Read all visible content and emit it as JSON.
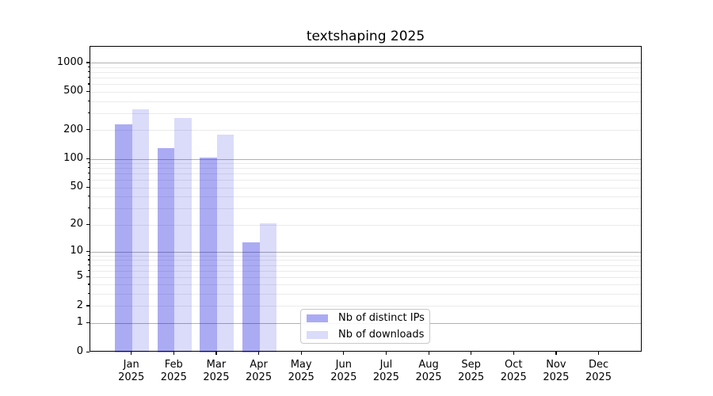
{
  "chart_data": {
    "type": "bar",
    "title": "textshaping 2025",
    "year_label": "2025",
    "categories": [
      "Jan",
      "Feb",
      "Mar",
      "Apr",
      "May",
      "Jun",
      "Jul",
      "Aug",
      "Sep",
      "Oct",
      "Nov",
      "Dec"
    ],
    "series": [
      {
        "name": "Nb of distinct IPs",
        "color": "rgba(0,0,220,0.33)",
        "values": [
          230,
          130,
          105,
          13,
          0,
          0,
          0,
          0,
          0,
          0,
          0,
          0
        ]
      },
      {
        "name": "Nb of downloads",
        "color": "rgba(0,0,220,0.14)",
        "values": [
          330,
          270,
          180,
          21,
          0,
          0,
          0,
          0,
          0,
          0,
          0,
          0
        ]
      }
    ],
    "y_ticks": [
      0,
      1,
      2,
      5,
      10,
      20,
      50,
      100,
      200,
      500,
      1000
    ],
    "yscale": "log1p",
    "ylim_top": 1485,
    "grid": true,
    "legend_position": "lower center",
    "grid_major_color": "#b0b0b0",
    "grid_minor_color": "#ebebeb"
  }
}
